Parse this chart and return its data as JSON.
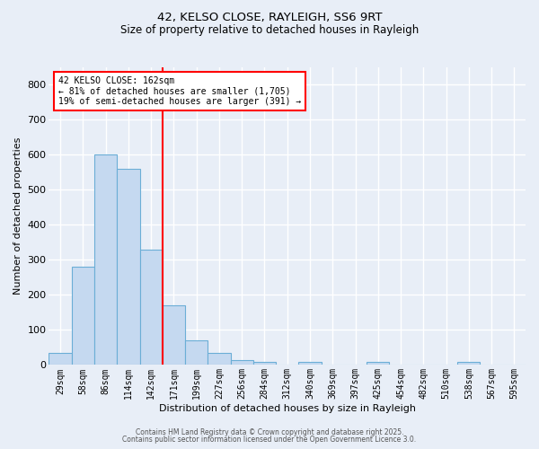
{
  "title_line1": "42, KELSO CLOSE, RAYLEIGH, SS6 9RT",
  "title_line2": "Size of property relative to detached houses in Rayleigh",
  "xlabel": "Distribution of detached houses by size in Rayleigh",
  "ylabel": "Number of detached properties",
  "categories": [
    "29sqm",
    "58sqm",
    "86sqm",
    "114sqm",
    "142sqm",
    "171sqm",
    "199sqm",
    "227sqm",
    "256sqm",
    "284sqm",
    "312sqm",
    "340sqm",
    "369sqm",
    "397sqm",
    "425sqm",
    "454sqm",
    "482sqm",
    "510sqm",
    "538sqm",
    "567sqm",
    "595sqm"
  ],
  "bar_heights": [
    35,
    280,
    600,
    560,
    330,
    170,
    70,
    35,
    15,
    10,
    0,
    10,
    0,
    0,
    10,
    0,
    0,
    0,
    10,
    0,
    0
  ],
  "bar_color": "#c5d9f0",
  "bar_edge_color": "#6baed6",
  "property_line_x": 5,
  "property_size_sqm": 162,
  "property_label": "42 KELSO CLOSE: 162sqm",
  "annotation_line1": "← 81% of detached houses are smaller (1,705)",
  "annotation_line2": "19% of semi-detached houses are larger (391) →",
  "ylim": [
    0,
    850
  ],
  "yticks": [
    0,
    100,
    200,
    300,
    400,
    500,
    600,
    700,
    800
  ],
  "background_color": "#e8eef7",
  "plot_bg_color": "#e8eef7",
  "grid_color": "#ffffff",
  "footer_line1": "Contains HM Land Registry data © Crown copyright and database right 2025.",
  "footer_line2": "Contains public sector information licensed under the Open Government Licence 3.0."
}
